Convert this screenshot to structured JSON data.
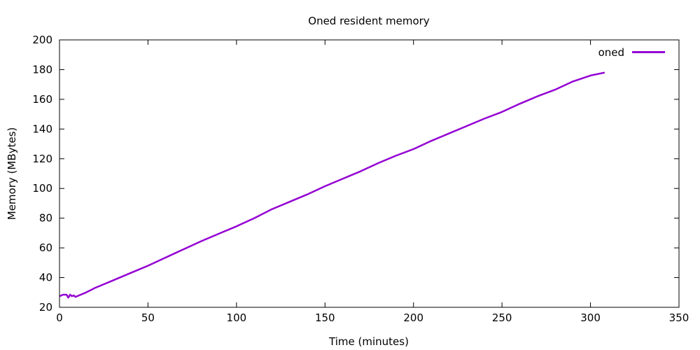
{
  "chart_data": {
    "type": "line",
    "title": "Oned resident memory",
    "xlabel": "Time (minutes)",
    "ylabel": "Memory (MBytes)",
    "xlim": [
      0,
      350
    ],
    "ylim": [
      20,
      200
    ],
    "xticks": [
      0,
      50,
      100,
      150,
      200,
      250,
      300,
      350
    ],
    "yticks": [
      20,
      40,
      60,
      80,
      100,
      120,
      140,
      160,
      180,
      200
    ],
    "grid": false,
    "legend_position": "top-right",
    "series": [
      {
        "name": "oned",
        "color": "#9400d3",
        "x": [
          0,
          2,
          4,
          5,
          6,
          7,
          8,
          9,
          10,
          12,
          15,
          20,
          25,
          30,
          40,
          50,
          60,
          70,
          80,
          90,
          100,
          110,
          120,
          130,
          140,
          150,
          160,
          170,
          180,
          190,
          200,
          210,
          220,
          230,
          240,
          250,
          260,
          270,
          280,
          290,
          300,
          308
        ],
        "y": [
          27.5,
          28.5,
          28.5,
          26.5,
          28.5,
          27.5,
          28,
          27,
          27.5,
          28.5,
          30,
          33,
          35.5,
          38,
          43,
          48,
          53.5,
          59,
          64.5,
          69.5,
          74.5,
          80,
          86,
          91,
          96,
          101.5,
          106.5,
          111.5,
          117,
          122,
          126.5,
          132,
          137,
          142,
          147,
          151.5,
          157,
          162,
          166.5,
          172,
          176,
          178
        ]
      }
    ]
  }
}
